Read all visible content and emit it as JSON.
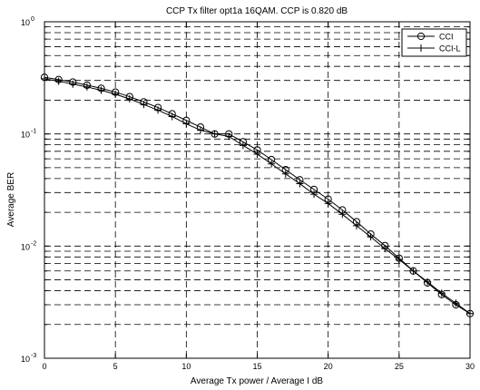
{
  "chart_data": {
    "type": "line",
    "title": "CCP Tx filter opt1a 16QAM. CCP is 0.820 dB",
    "xlabel": "Average Tx power / Average I  dB",
    "ylabel": "Average BER",
    "xlim": [
      0,
      30
    ],
    "ylim": [
      0.001,
      1
    ],
    "yscale": "log",
    "grid": true,
    "legend_position": "top-right",
    "x_ticks": [
      0,
      5,
      10,
      15,
      20,
      25,
      30
    ],
    "x_tick_labels": [
      "0",
      "5",
      "10",
      "15",
      "20",
      "25",
      "30"
    ],
    "y_tick_labels": [
      {
        "base": "10",
        "exp": "0",
        "value": 1
      },
      {
        "base": "10",
        "exp": "-1",
        "value": 0.1
      },
      {
        "base": "10",
        "exp": "-2",
        "value": 0.01
      },
      {
        "base": "10",
        "exp": "-3",
        "value": 0.001
      }
    ],
    "x": [
      0,
      1,
      2,
      3,
      4,
      5,
      6,
      7,
      8,
      9,
      10,
      11,
      12,
      13,
      14,
      15,
      16,
      17,
      18,
      19,
      20,
      21,
      22,
      23,
      24,
      25,
      26,
      27,
      28,
      29,
      30
    ],
    "series": [
      {
        "name": "CCI",
        "marker": "circle",
        "values": [
          0.32,
          0.305,
          0.29,
          0.272,
          0.255,
          0.236,
          0.215,
          0.193,
          0.172,
          0.151,
          0.132,
          0.115,
          0.1,
          0.1,
          0.085,
          0.072,
          0.059,
          0.048,
          0.039,
          0.032,
          0.0262,
          0.021,
          0.0165,
          0.0128,
          0.0101,
          0.0078,
          0.006,
          0.0047,
          0.0037,
          0.003,
          0.0025
        ]
      },
      {
        "name": "CCI-L",
        "marker": "plus",
        "values": [
          0.31,
          0.295,
          0.278,
          0.262,
          0.245,
          0.226,
          0.205,
          0.183,
          0.163,
          0.143,
          0.123,
          0.108,
          0.1,
          0.095,
          0.079,
          0.066,
          0.054,
          0.044,
          0.036,
          0.029,
          0.024,
          0.0192,
          0.0152,
          0.0121,
          0.0095,
          0.0076,
          0.006,
          0.0048,
          0.0038,
          0.0031,
          0.0025
        ]
      }
    ]
  }
}
